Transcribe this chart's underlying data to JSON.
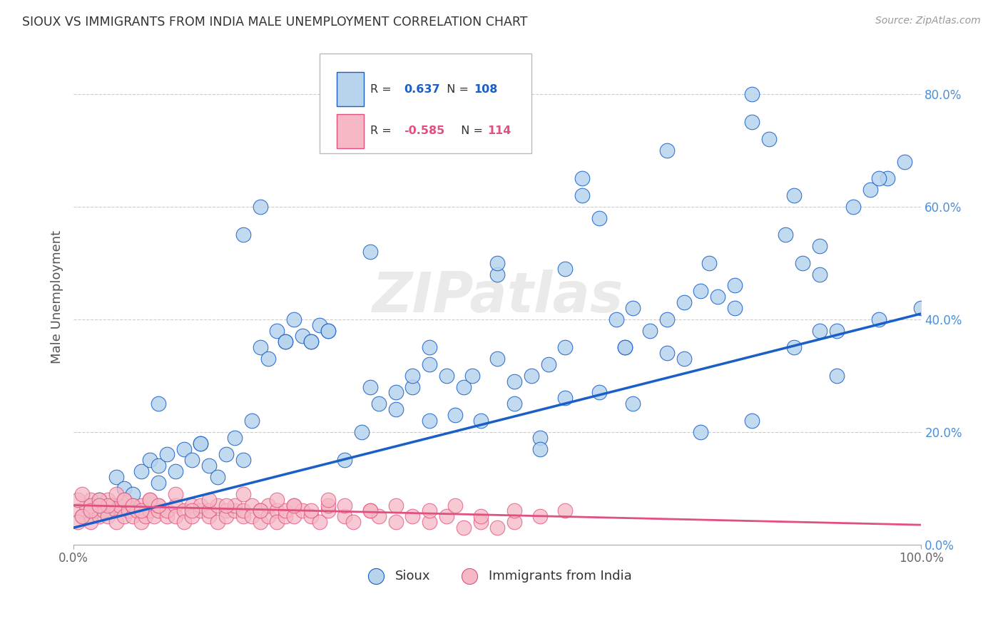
{
  "title": "SIOUX VS IMMIGRANTS FROM INDIA MALE UNEMPLOYMENT CORRELATION CHART",
  "source": "Source: ZipAtlas.com",
  "ylabel": "Male Unemployment",
  "legend_blue_R": "0.637",
  "legend_blue_N": "108",
  "legend_pink_R": "-0.585",
  "legend_pink_N": "114",
  "legend_label_blue": "Sioux",
  "legend_label_pink": "Immigrants from India",
  "watermark_text": "ZIPatlas",
  "blue_color": "#b8d4ed",
  "blue_line_color": "#1a5fc8",
  "pink_color": "#f5b8c4",
  "pink_line_color": "#e05080",
  "background_color": "#ffffff",
  "grid_color": "#cccccc",
  "ytick_color": "#4a90d9",
  "blue_scatter_x": [
    0.02,
    0.03,
    0.04,
    0.05,
    0.05,
    0.06,
    0.07,
    0.08,
    0.09,
    0.1,
    0.1,
    0.11,
    0.12,
    0.13,
    0.14,
    0.15,
    0.16,
    0.17,
    0.18,
    0.19,
    0.2,
    0.21,
    0.22,
    0.23,
    0.24,
    0.25,
    0.26,
    0.27,
    0.28,
    0.29,
    0.3,
    0.32,
    0.34,
    0.36,
    0.38,
    0.4,
    0.42,
    0.44,
    0.46,
    0.48,
    0.5,
    0.52,
    0.54,
    0.56,
    0.58,
    0.6,
    0.62,
    0.64,
    0.66,
    0.68,
    0.7,
    0.72,
    0.74,
    0.76,
    0.78,
    0.8,
    0.82,
    0.84,
    0.86,
    0.88,
    0.9,
    0.92,
    0.94,
    0.96,
    0.98,
    1.0,
    0.15,
    0.22,
    0.28,
    0.35,
    0.42,
    0.5,
    0.58,
    0.65,
    0.72,
    0.8,
    0.88,
    0.95,
    0.3,
    0.45,
    0.6,
    0.75,
    0.1,
    0.2,
    0.4,
    0.55,
    0.7,
    0.85,
    0.25,
    0.35,
    0.5,
    0.65,
    0.8,
    0.55,
    0.7,
    0.85,
    0.38,
    0.52,
    0.66,
    0.78,
    0.9,
    0.47,
    0.62,
    0.74,
    0.88,
    0.95,
    0.42,
    0.58
  ],
  "blue_scatter_y": [
    0.05,
    0.08,
    0.06,
    0.12,
    0.07,
    0.1,
    0.09,
    0.13,
    0.15,
    0.11,
    0.14,
    0.16,
    0.13,
    0.17,
    0.15,
    0.18,
    0.14,
    0.12,
    0.16,
    0.19,
    0.55,
    0.22,
    0.35,
    0.33,
    0.38,
    0.36,
    0.4,
    0.37,
    0.36,
    0.39,
    0.38,
    0.15,
    0.2,
    0.25,
    0.24,
    0.28,
    0.32,
    0.3,
    0.28,
    0.22,
    0.48,
    0.25,
    0.3,
    0.32,
    0.35,
    0.62,
    0.58,
    0.4,
    0.42,
    0.38,
    0.4,
    0.43,
    0.45,
    0.44,
    0.46,
    0.75,
    0.72,
    0.55,
    0.5,
    0.48,
    0.3,
    0.6,
    0.63,
    0.65,
    0.68,
    0.42,
    0.18,
    0.6,
    0.36,
    0.52,
    0.22,
    0.33,
    0.26,
    0.35,
    0.33,
    0.22,
    0.38,
    0.4,
    0.38,
    0.23,
    0.65,
    0.5,
    0.25,
    0.15,
    0.3,
    0.19,
    0.7,
    0.62,
    0.36,
    0.28,
    0.5,
    0.35,
    0.8,
    0.17,
    0.34,
    0.35,
    0.27,
    0.29,
    0.25,
    0.42,
    0.38,
    0.3,
    0.27,
    0.2,
    0.53,
    0.65,
    0.35,
    0.49
  ],
  "pink_scatter_x": [
    0.005,
    0.01,
    0.015,
    0.02,
    0.02,
    0.025,
    0.03,
    0.03,
    0.035,
    0.04,
    0.04,
    0.045,
    0.05,
    0.05,
    0.055,
    0.06,
    0.06,
    0.065,
    0.07,
    0.07,
    0.075,
    0.08,
    0.08,
    0.085,
    0.09,
    0.09,
    0.095,
    0.1,
    0.1,
    0.11,
    0.11,
    0.12,
    0.12,
    0.13,
    0.13,
    0.14,
    0.14,
    0.15,
    0.15,
    0.16,
    0.16,
    0.17,
    0.17,
    0.18,
    0.18,
    0.19,
    0.19,
    0.2,
    0.2,
    0.21,
    0.21,
    0.22,
    0.22,
    0.23,
    0.23,
    0.24,
    0.24,
    0.25,
    0.25,
    0.26,
    0.26,
    0.27,
    0.28,
    0.29,
    0.3,
    0.3,
    0.32,
    0.33,
    0.35,
    0.36,
    0.38,
    0.4,
    0.42,
    0.44,
    0.46,
    0.48,
    0.5,
    0.52,
    0.005,
    0.01,
    0.02,
    0.03,
    0.04,
    0.05,
    0.06,
    0.07,
    0.08,
    0.09,
    0.1,
    0.12,
    0.14,
    0.16,
    0.18,
    0.2,
    0.22,
    0.24,
    0.26,
    0.28,
    0.3,
    0.32,
    0.35,
    0.38,
    0.42,
    0.45,
    0.48,
    0.52,
    0.55,
    0.58,
    0.005,
    0.01,
    0.02,
    0.03
  ],
  "pink_scatter_y": [
    0.06,
    0.05,
    0.07,
    0.04,
    0.08,
    0.06,
    0.05,
    0.07,
    0.06,
    0.08,
    0.05,
    0.07,
    0.06,
    0.04,
    0.07,
    0.05,
    0.08,
    0.06,
    0.05,
    0.07,
    0.06,
    0.04,
    0.07,
    0.05,
    0.06,
    0.08,
    0.05,
    0.06,
    0.07,
    0.05,
    0.06,
    0.07,
    0.05,
    0.06,
    0.04,
    0.07,
    0.05,
    0.06,
    0.07,
    0.05,
    0.06,
    0.04,
    0.07,
    0.06,
    0.05,
    0.06,
    0.07,
    0.05,
    0.06,
    0.07,
    0.05,
    0.04,
    0.06,
    0.05,
    0.07,
    0.06,
    0.04,
    0.05,
    0.06,
    0.07,
    0.05,
    0.06,
    0.05,
    0.04,
    0.06,
    0.07,
    0.05,
    0.04,
    0.06,
    0.05,
    0.04,
    0.05,
    0.04,
    0.05,
    0.03,
    0.04,
    0.03,
    0.04,
    0.08,
    0.09,
    0.07,
    0.08,
    0.07,
    0.09,
    0.08,
    0.07,
    0.06,
    0.08,
    0.07,
    0.09,
    0.06,
    0.08,
    0.07,
    0.09,
    0.06,
    0.08,
    0.07,
    0.06,
    0.08,
    0.07,
    0.06,
    0.07,
    0.06,
    0.07,
    0.05,
    0.06,
    0.05,
    0.06,
    0.04,
    0.05,
    0.06,
    0.07
  ],
  "xlim": [
    0.0,
    1.0
  ],
  "ylim": [
    0.0,
    0.88
  ],
  "yticks": [
    0.0,
    0.2,
    0.4,
    0.6,
    0.8
  ],
  "ytick_labels": [
    "0.0%",
    "20.0%",
    "40.0%",
    "60.0%",
    "80.0%"
  ],
  "xticks": [
    0.0,
    1.0
  ],
  "xtick_labels": [
    "0.0%",
    "100.0%"
  ]
}
